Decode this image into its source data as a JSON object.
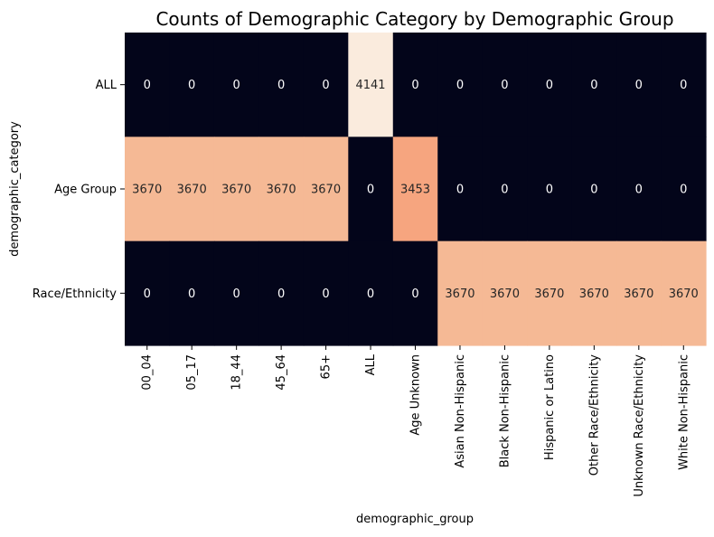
{
  "chart_data": {
    "type": "heatmap",
    "title": "Counts of Demographic Category by Demographic Group",
    "xlabel": "demographic_group",
    "ylabel": "demographic_category",
    "x_categories": [
      "00_04",
      "05_17",
      "18_44",
      "45_64",
      "65+",
      "ALL",
      "Age Unknown",
      "Asian Non-Hispanic",
      "Black Non-Hispanic",
      "Hispanic or Latino",
      "Other Race/Ethnicity",
      "Unknown Race/Ethnicity",
      "White Non-Hispanic"
    ],
    "y_categories": [
      "ALL",
      "Age Group",
      "Race/Ethnicity"
    ],
    "values": [
      [
        0,
        0,
        0,
        0,
        0,
        4141,
        0,
        0,
        0,
        0,
        0,
        0,
        0
      ],
      [
        3670,
        3670,
        3670,
        3670,
        3670,
        0,
        3453,
        0,
        0,
        0,
        0,
        0,
        0
      ],
      [
        0,
        0,
        0,
        0,
        0,
        0,
        0,
        3670,
        3670,
        3670,
        3670,
        3670,
        3670
      ]
    ],
    "value_range": [
      0,
      4141
    ],
    "colormap": "rocket",
    "colorbar": false,
    "annotated": true,
    "grid": false
  }
}
